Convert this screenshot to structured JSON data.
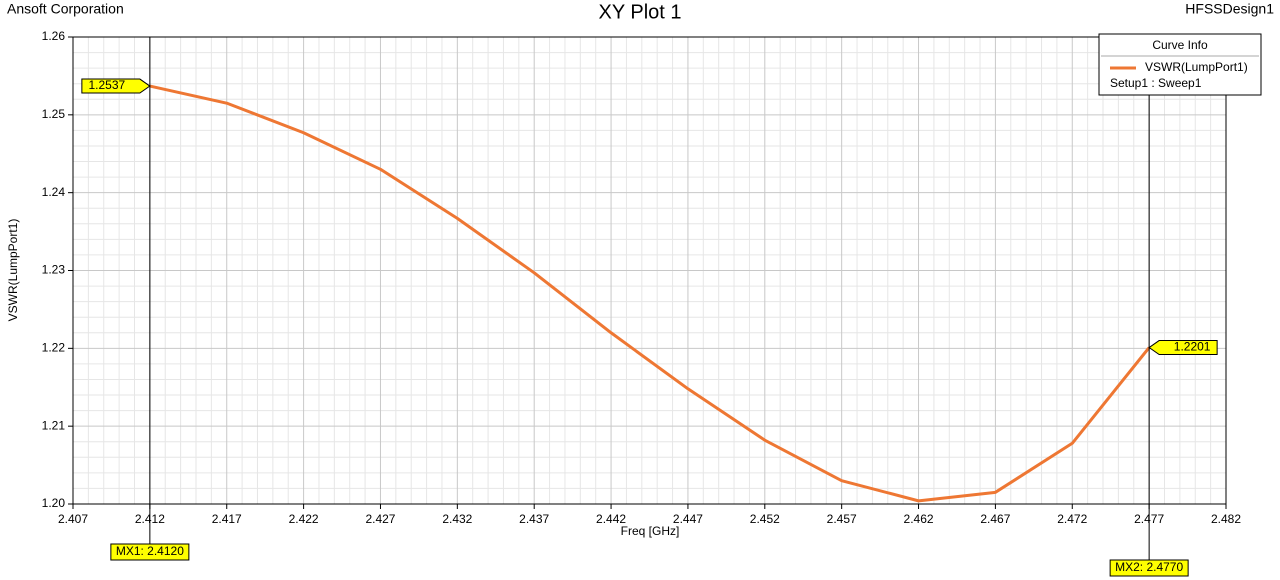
{
  "chart_data": {
    "type": "line",
    "company": "Ansoft Corporation",
    "title": "XY Plot 1",
    "design": "HFSSDesign1",
    "xlabel": "Freq [GHz]",
    "ylabel": "VSWR(LumpPort1)",
    "x": [
      2.412,
      2.417,
      2.422,
      2.427,
      2.432,
      2.437,
      2.442,
      2.447,
      2.452,
      2.457,
      2.462,
      2.467,
      2.472,
      2.477
    ],
    "series": [
      {
        "name": "VSWR(LumpPort1)",
        "color": "#ee7733",
        "values": [
          1.2537,
          1.2515,
          1.2477,
          1.243,
          1.2367,
          1.2297,
          1.222,
          1.2148,
          1.2082,
          1.203,
          1.2004,
          1.2015,
          1.2078,
          1.2201
        ]
      }
    ],
    "legend_title": "Curve Info",
    "legend_note": "Setup1 : Sweep1",
    "legend": "upper right",
    "xlim": [
      2.407,
      2.482
    ],
    "xticks": [
      2.407,
      2.412,
      2.417,
      2.422,
      2.427,
      2.432,
      2.437,
      2.442,
      2.447,
      2.452,
      2.457,
      2.462,
      2.467,
      2.472,
      2.477,
      2.482
    ],
    "ylim": [
      1.2,
      1.26
    ],
    "yticks": [
      {
        "value": 1.2,
        "label": "1.20"
      },
      1.21,
      1.22,
      1.23,
      1.24,
      1.25,
      1.26
    ],
    "grid": true,
    "minor_grid": true,
    "markers": [
      {
        "label": "MX1: 2.4120",
        "x": 2.412,
        "y": 1.2537,
        "value_label": "1.2537"
      },
      {
        "label": "MX2: 2.4770",
        "x": 2.477,
        "y": 1.2201,
        "value_label": "1.2201"
      }
    ]
  }
}
